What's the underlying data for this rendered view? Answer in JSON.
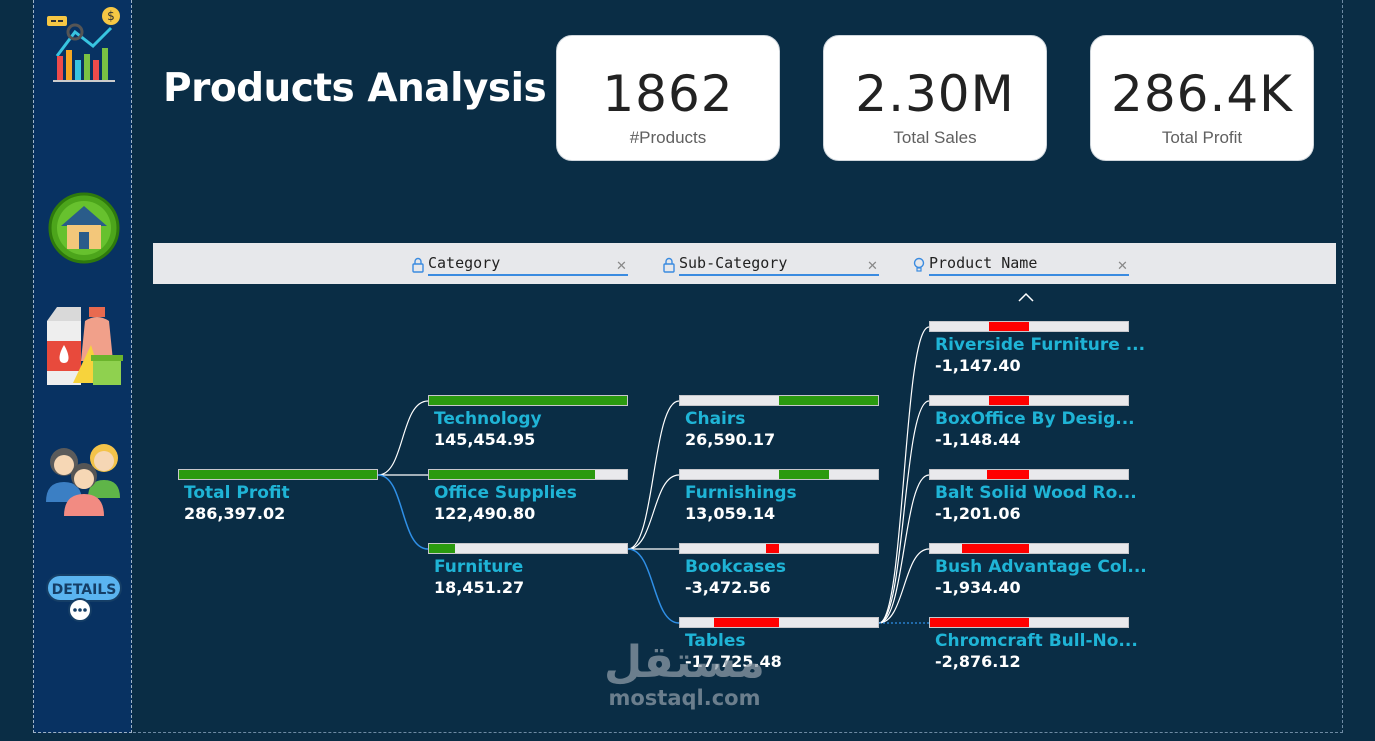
{
  "page": {
    "title": "Products Analysis"
  },
  "sidebar": {
    "items": [
      {
        "name": "analytics-logo-icon"
      },
      {
        "name": "home-icon"
      },
      {
        "name": "products-icon"
      },
      {
        "name": "customers-icon"
      },
      {
        "name": "details-icon",
        "label": "DETAILS"
      }
    ]
  },
  "kpis": [
    {
      "value": "1862",
      "label": "#Products"
    },
    {
      "value": "2.30M",
      "label": "Total Sales"
    },
    {
      "value": "286.4K",
      "label": "Total Profit"
    }
  ],
  "tree": {
    "levels": [
      {
        "label": "Category",
        "icon": "lock-icon"
      },
      {
        "label": "Sub-Category",
        "icon": "lock-icon"
      },
      {
        "label": "Product Name",
        "icon": "lightbulb-icon"
      }
    ],
    "root": {
      "name": "Total Profit",
      "value": "286,397.02",
      "fill": 1.0
    },
    "categories": [
      {
        "name": "Technology",
        "value": "145,454.95",
        "fill": 1.0
      },
      {
        "name": "Office Supplies",
        "value": "122,490.80",
        "fill": 0.84
      },
      {
        "name": "Furniture",
        "value": "18,451.27",
        "fill": 0.13
      }
    ],
    "subcategories": [
      {
        "name": "Chairs",
        "value": "26,590.17",
        "fill": 0.5
      },
      {
        "name": "Furnishings",
        "value": "13,059.14",
        "fill": 0.25
      },
      {
        "name": "Bookcases",
        "value": "-3,472.56",
        "fill": -0.065
      },
      {
        "name": "Tables",
        "value": "-17,725.48",
        "fill": -0.33
      }
    ],
    "products": [
      {
        "name": "Riverside Furniture ...",
        "value": "-1,147.40",
        "fill": -0.2
      },
      {
        "name": "BoxOffice By Desig...",
        "value": "-1,148.44",
        "fill": -0.2
      },
      {
        "name": "Balt Solid Wood Ro...",
        "value": "-1,201.06",
        "fill": -0.21
      },
      {
        "name": "Bush Advantage Col...",
        "value": "-1,934.40",
        "fill": -0.34
      },
      {
        "name": "Chromcraft Bull-No...",
        "value": "-2,876.12",
        "fill": -0.5
      }
    ],
    "colors": {
      "positive": "#2b9a0f",
      "negative": "#ff0000",
      "link": "#ffffff",
      "selected_link": "#2f8fe6",
      "name": "#1fb4d6"
    }
  },
  "watermark": {
    "arabic": "مستقل",
    "latin": "mostaql.com"
  }
}
